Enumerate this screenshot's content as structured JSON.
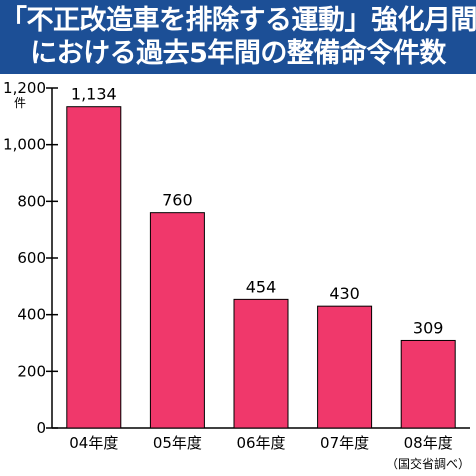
{
  "chart_data": {
    "type": "bar",
    "title_lines": [
      "「不正改造車を排除する運動」強化月間",
      "における過去5年間の整備命令件数"
    ],
    "unit": "件",
    "categories": [
      "04年度",
      "05年度",
      "06年度",
      "07年度",
      "08年度"
    ],
    "values": [
      1134,
      760,
      454,
      430,
      309
    ],
    "value_labels": [
      "1,134",
      "760",
      "454",
      "430",
      "309"
    ],
    "y_ticks": [
      0,
      200,
      400,
      600,
      800,
      1000,
      1200
    ],
    "y_tick_labels": [
      "0",
      "200",
      "400",
      "600",
      "800",
      "1,000",
      "1,200"
    ],
    "ylim": [
      0,
      1200
    ],
    "source": "（国交省調べ）",
    "bar_color": "#f0386b",
    "title_bg": "#1c4f96",
    "grid": false
  }
}
